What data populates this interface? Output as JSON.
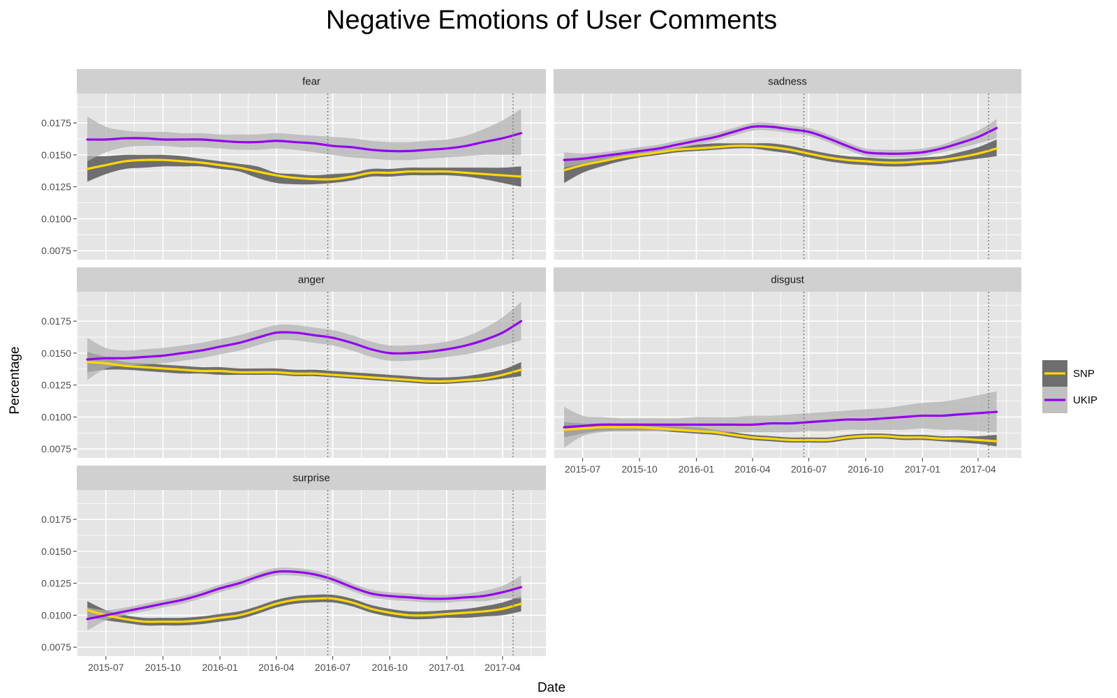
{
  "colors": {
    "SNP": "#FFD700",
    "UKIP": "#9400F0",
    "snp_band": "#595959",
    "ukip_band": "#b3b3b3",
    "panel_bg": "#e5e5e5",
    "strip_bg": "#d0d0d0",
    "grid": "#ffffff",
    "vline": "#7f7f7f"
  },
  "chart_data": {
    "type": "line",
    "title": "Negative Emotions of User Comments",
    "xlabel": "Date",
    "ylabel": "Percentage",
    "x_range": [
      "2015-05-15",
      "2017-06-10"
    ],
    "ylim": [
      0.0068,
      0.0198
    ],
    "x_ticks": [
      "2015-07",
      "2015-10",
      "2016-01",
      "2016-04",
      "2016-07",
      "2016-10",
      "2017-01",
      "2017-04"
    ],
    "y_ticks": [
      "0.0075",
      "0.0100",
      "0.0125",
      "0.0150",
      "0.0175"
    ],
    "vlines": [
      "2016-06-23",
      "2017-04-18"
    ],
    "grid": true,
    "legend": {
      "position": "right",
      "entries": [
        "SNP",
        "UKIP"
      ]
    },
    "series_dates": [
      "2015-06-01",
      "2015-07-01",
      "2015-08-01",
      "2015-09-01",
      "2015-10-01",
      "2015-11-01",
      "2015-12-01",
      "2016-01-01",
      "2016-02-01",
      "2016-03-01",
      "2016-04-01",
      "2016-05-01",
      "2016-06-01",
      "2016-07-01",
      "2016-08-01",
      "2016-09-01",
      "2016-10-01",
      "2016-11-01",
      "2016-12-01",
      "2017-01-01",
      "2017-02-01",
      "2017-03-01",
      "2017-04-01",
      "2017-05-01"
    ],
    "panels": [
      {
        "name": "fear",
        "series": [
          {
            "name": "SNP",
            "values": [
              0.0139,
              0.0142,
              0.0145,
              0.0146,
              0.0146,
              0.0145,
              0.0144,
              0.0142,
              0.014,
              0.0137,
              0.0134,
              0.0132,
              0.0131,
              0.0131,
              0.0133,
              0.0136,
              0.0136,
              0.0137,
              0.0137,
              0.0137,
              0.0136,
              0.0135,
              0.0134,
              0.0133
            ],
            "lower": [
              0.0129,
              0.0135,
              0.0139,
              0.014,
              0.0141,
              0.0141,
              0.0141,
              0.0139,
              0.0137,
              0.0132,
              0.0128,
              0.0127,
              0.0127,
              0.0128,
              0.013,
              0.0133,
              0.0133,
              0.0134,
              0.0134,
              0.0134,
              0.0133,
              0.0131,
              0.0128,
              0.0125
            ],
            "upper": [
              0.0149,
              0.0149,
              0.015,
              0.015,
              0.015,
              0.0149,
              0.0147,
              0.0145,
              0.0143,
              0.0141,
              0.0136,
              0.0135,
              0.0134,
              0.0135,
              0.0136,
              0.0139,
              0.0139,
              0.014,
              0.014,
              0.014,
              0.014,
              0.014,
              0.014,
              0.0141
            ]
          },
          {
            "name": "UKIP",
            "values": [
              0.0162,
              0.0162,
              0.0163,
              0.0163,
              0.0162,
              0.0162,
              0.0162,
              0.0161,
              0.016,
              0.016,
              0.0161,
              0.016,
              0.0159,
              0.0157,
              0.0156,
              0.0154,
              0.0153,
              0.0153,
              0.0154,
              0.0155,
              0.0157,
              0.016,
              0.0163,
              0.0167
            ],
            "lower": [
              0.0145,
              0.0152,
              0.0156,
              0.0157,
              0.0157,
              0.0156,
              0.0156,
              0.0155,
              0.0154,
              0.0154,
              0.0155,
              0.0154,
              0.0152,
              0.015,
              0.0148,
              0.0147,
              0.0146,
              0.0146,
              0.0147,
              0.0148,
              0.0149,
              0.015,
              0.015,
              0.015
            ],
            "upper": [
              0.018,
              0.0172,
              0.0169,
              0.0168,
              0.0168,
              0.0167,
              0.0167,
              0.0166,
              0.0166,
              0.0166,
              0.0167,
              0.0166,
              0.0165,
              0.0164,
              0.0163,
              0.0161,
              0.016,
              0.016,
              0.0161,
              0.0162,
              0.0165,
              0.017,
              0.0177,
              0.0186
            ]
          }
        ]
      },
      {
        "name": "sadness",
        "series": [
          {
            "name": "SNP",
            "values": [
              0.0138,
              0.0142,
              0.0145,
              0.0148,
              0.015,
              0.0152,
              0.0154,
              0.0155,
              0.0156,
              0.0157,
              0.0157,
              0.0156,
              0.0154,
              0.0151,
              0.0148,
              0.0146,
              0.0145,
              0.0144,
              0.0144,
              0.0145,
              0.0146,
              0.0148,
              0.0151,
              0.0155
            ],
            "lower": [
              0.0128,
              0.0136,
              0.0141,
              0.0145,
              0.0148,
              0.015,
              0.0152,
              0.0153,
              0.0154,
              0.0155,
              0.0155,
              0.0153,
              0.0151,
              0.0148,
              0.0145,
              0.0143,
              0.0142,
              0.0141,
              0.0141,
              0.0142,
              0.0143,
              0.0145,
              0.0147,
              0.0149
            ],
            "upper": [
              0.0147,
              0.0148,
              0.0149,
              0.0151,
              0.0152,
              0.0154,
              0.0156,
              0.0158,
              0.0159,
              0.0159,
              0.0159,
              0.0159,
              0.0157,
              0.0154,
              0.0151,
              0.0149,
              0.0148,
              0.0147,
              0.0147,
              0.0148,
              0.0149,
              0.0152,
              0.0156,
              0.0162
            ]
          },
          {
            "name": "UKIP",
            "values": [
              0.0146,
              0.0147,
              0.0149,
              0.0151,
              0.0153,
              0.0155,
              0.0158,
              0.0161,
              0.0164,
              0.0168,
              0.0172,
              0.0172,
              0.017,
              0.0168,
              0.0163,
              0.0157,
              0.0152,
              0.0151,
              0.0151,
              0.0152,
              0.0155,
              0.0159,
              0.0164,
              0.0171
            ],
            "lower": [
              0.014,
              0.0143,
              0.0146,
              0.0148,
              0.015,
              0.0152,
              0.0155,
              0.0158,
              0.0161,
              0.0165,
              0.0169,
              0.0169,
              0.0167,
              0.0165,
              0.016,
              0.0154,
              0.0149,
              0.0148,
              0.0148,
              0.0149,
              0.0152,
              0.0155,
              0.0159,
              0.0163
            ],
            "upper": [
              0.0152,
              0.0151,
              0.0152,
              0.0154,
              0.0156,
              0.0158,
              0.0161,
              0.0164,
              0.0167,
              0.0171,
              0.0175,
              0.0175,
              0.0173,
              0.0171,
              0.0166,
              0.016,
              0.0155,
              0.0154,
              0.0154,
              0.0155,
              0.0158,
              0.0163,
              0.0169,
              0.0178
            ]
          }
        ]
      },
      {
        "name": "anger",
        "series": [
          {
            "name": "SNP",
            "values": [
              0.0143,
              0.0142,
              0.014,
              0.0139,
              0.0138,
              0.0137,
              0.0136,
              0.0136,
              0.0135,
              0.0135,
              0.0135,
              0.0134,
              0.0134,
              0.0133,
              0.0132,
              0.0131,
              0.013,
              0.0129,
              0.0128,
              0.0128,
              0.0129,
              0.013,
              0.0133,
              0.0137
            ],
            "lower": [
              0.0135,
              0.0137,
              0.0137,
              0.0136,
              0.0135,
              0.0134,
              0.0134,
              0.0133,
              0.0133,
              0.0133,
              0.0133,
              0.0132,
              0.0132,
              0.0131,
              0.013,
              0.0129,
              0.0128,
              0.0127,
              0.0126,
              0.0126,
              0.0127,
              0.0128,
              0.013,
              0.0132
            ],
            "upper": [
              0.0151,
              0.0147,
              0.0143,
              0.0142,
              0.0141,
              0.014,
              0.0139,
              0.0139,
              0.0138,
              0.0138,
              0.0138,
              0.0137,
              0.0137,
              0.0136,
              0.0135,
              0.0134,
              0.0133,
              0.0132,
              0.0131,
              0.0131,
              0.0132,
              0.0134,
              0.0137,
              0.0143
            ]
          },
          {
            "name": "UKIP",
            "values": [
              0.0145,
              0.0146,
              0.0146,
              0.0147,
              0.0148,
              0.015,
              0.0152,
              0.0155,
              0.0158,
              0.0162,
              0.0166,
              0.0166,
              0.0164,
              0.0162,
              0.0158,
              0.0153,
              0.015,
              0.015,
              0.0151,
              0.0153,
              0.0156,
              0.016,
              0.0166,
              0.0175
            ],
            "lower": [
              0.0129,
              0.0138,
              0.014,
              0.0141,
              0.0142,
              0.0144,
              0.0146,
              0.0149,
              0.0152,
              0.0156,
              0.016,
              0.016,
              0.0158,
              0.0156,
              0.0152,
              0.0147,
              0.0144,
              0.0144,
              0.0145,
              0.0147,
              0.0149,
              0.0152,
              0.0156,
              0.016
            ],
            "upper": [
              0.0162,
              0.0154,
              0.0152,
              0.0153,
              0.0154,
              0.0156,
              0.0158,
              0.0161,
              0.0164,
              0.0168,
              0.0172,
              0.0172,
              0.017,
              0.0168,
              0.0164,
              0.0159,
              0.0156,
              0.0156,
              0.0157,
              0.0159,
              0.0163,
              0.0169,
              0.0178,
              0.019
            ]
          }
        ]
      },
      {
        "name": "disgust",
        "series": [
          {
            "name": "SNP",
            "values": [
              0.009,
              0.0091,
              0.0092,
              0.0092,
              0.0092,
              0.0091,
              0.009,
              0.0089,
              0.0088,
              0.0086,
              0.0084,
              0.0083,
              0.0082,
              0.0082,
              0.0082,
              0.0084,
              0.0085,
              0.0085,
              0.0084,
              0.0084,
              0.0083,
              0.0083,
              0.0082,
              0.0081
            ],
            "lower": [
              0.0084,
              0.0087,
              0.0089,
              0.0089,
              0.0089,
              0.0089,
              0.0088,
              0.0087,
              0.0086,
              0.0084,
              0.0082,
              0.0081,
              0.008,
              0.008,
              0.008,
              0.0082,
              0.0083,
              0.0083,
              0.0082,
              0.0082,
              0.0081,
              0.008,
              0.0079,
              0.0077
            ],
            "upper": [
              0.0096,
              0.0095,
              0.0095,
              0.0095,
              0.0095,
              0.0094,
              0.0093,
              0.0092,
              0.009,
              0.0088,
              0.0086,
              0.0085,
              0.0084,
              0.0084,
              0.0084,
              0.0086,
              0.0087,
              0.0087,
              0.0086,
              0.0086,
              0.0085,
              0.0085,
              0.0085,
              0.0086
            ]
          },
          {
            "name": "UKIP",
            "values": [
              0.0092,
              0.0093,
              0.0094,
              0.0094,
              0.0094,
              0.0094,
              0.0094,
              0.0094,
              0.0094,
              0.0094,
              0.0094,
              0.0095,
              0.0095,
              0.0096,
              0.0097,
              0.0098,
              0.0098,
              0.0099,
              0.01,
              0.0101,
              0.0101,
              0.0102,
              0.0103,
              0.0104
            ],
            "lower": [
              0.0076,
              0.0085,
              0.0088,
              0.0089,
              0.0089,
              0.0089,
              0.0089,
              0.0088,
              0.0088,
              0.0088,
              0.0088,
              0.0088,
              0.0088,
              0.0089,
              0.0089,
              0.009,
              0.009,
              0.009,
              0.009,
              0.0091,
              0.009,
              0.009,
              0.0089,
              0.0088
            ],
            "upper": [
              0.0108,
              0.0101,
              0.01,
              0.0099,
              0.0099,
              0.0099,
              0.0099,
              0.01,
              0.01,
              0.01,
              0.0101,
              0.0101,
              0.0102,
              0.0103,
              0.0104,
              0.0105,
              0.0106,
              0.0107,
              0.0109,
              0.0111,
              0.0112,
              0.0114,
              0.0117,
              0.012
            ]
          }
        ]
      },
      {
        "name": "surprise",
        "series": [
          {
            "name": "SNP",
            "values": [
              0.0104,
              0.01,
              0.0097,
              0.0095,
              0.0095,
              0.0095,
              0.0096,
              0.0098,
              0.01,
              0.0104,
              0.0109,
              0.0112,
              0.0113,
              0.0113,
              0.011,
              0.0105,
              0.0102,
              0.01,
              0.01,
              0.0101,
              0.0102,
              0.0103,
              0.0105,
              0.0109
            ],
            "lower": [
              0.0098,
              0.0096,
              0.0094,
              0.0092,
              0.0092,
              0.0092,
              0.0093,
              0.0095,
              0.0097,
              0.0101,
              0.0106,
              0.0109,
              0.011,
              0.011,
              0.0107,
              0.0102,
              0.0099,
              0.0097,
              0.0097,
              0.0098,
              0.0098,
              0.0099,
              0.01,
              0.0103
            ],
            "upper": [
              0.0111,
              0.0104,
              0.01,
              0.0098,
              0.0098,
              0.0098,
              0.0099,
              0.0101,
              0.0103,
              0.0107,
              0.0112,
              0.0115,
              0.0116,
              0.0116,
              0.0113,
              0.0108,
              0.0105,
              0.0103,
              0.0103,
              0.0104,
              0.0105,
              0.0107,
              0.011,
              0.0115
            ]
          },
          {
            "name": "UKIP",
            "values": [
              0.0097,
              0.01,
              0.0103,
              0.0106,
              0.0109,
              0.0112,
              0.0116,
              0.0121,
              0.0125,
              0.013,
              0.0134,
              0.0134,
              0.0132,
              0.0128,
              0.0122,
              0.0117,
              0.0115,
              0.0114,
              0.0113,
              0.0113,
              0.0114,
              0.0115,
              0.0118,
              0.0122
            ],
            "lower": [
              0.0088,
              0.0096,
              0.01,
              0.0103,
              0.0106,
              0.0109,
              0.0113,
              0.0118,
              0.0122,
              0.0127,
              0.0131,
              0.0131,
              0.0129,
              0.0125,
              0.0119,
              0.0114,
              0.0112,
              0.0111,
              0.011,
              0.011,
              0.0111,
              0.0111,
              0.0113,
              0.0113
            ],
            "upper": [
              0.0106,
              0.0104,
              0.0106,
              0.0109,
              0.0112,
              0.0115,
              0.0119,
              0.0124,
              0.0128,
              0.0133,
              0.0137,
              0.0137,
              0.0135,
              0.0131,
              0.0125,
              0.012,
              0.0118,
              0.0117,
              0.0116,
              0.0116,
              0.0117,
              0.0119,
              0.0123,
              0.0131
            ]
          }
        ]
      }
    ]
  }
}
